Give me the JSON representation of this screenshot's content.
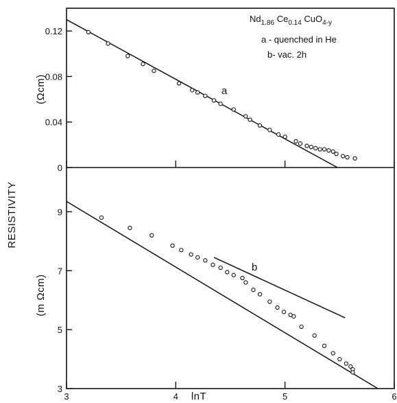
{
  "chart_data": [
    {
      "type": "scatter",
      "panel": "top",
      "title": "",
      "ylabel": "(Ωcm)",
      "xlabel": "",
      "xlim": [
        3,
        6
      ],
      "ylim": [
        0,
        0.14
      ],
      "yticks": [
        "0",
        "0.04",
        "0.08",
        "0.12"
      ],
      "annotations": [
        "a - quenched in He",
        "b- vac. 2h"
      ],
      "formula": {
        "base": "Nd",
        "sub1": "1.86",
        "mid": " Ce",
        "sub2": "0.14",
        "mid2": " CuO",
        "sub3": "4-y"
      },
      "series": [
        {
          "name": "a",
          "x": [
            3.2,
            3.38,
            3.56,
            3.7,
            3.8,
            4.03,
            4.15,
            4.2,
            4.27,
            4.35,
            4.41,
            4.53,
            4.64,
            4.68,
            4.77,
            4.86,
            4.94,
            5.0,
            5.1,
            5.14,
            5.2,
            5.24,
            5.28,
            5.32,
            5.36,
            5.4,
            5.44,
            5.47,
            5.53,
            5.57,
            5.64
          ],
          "y": [
            0.119,
            0.109,
            0.098,
            0.091,
            0.085,
            0.074,
            0.068,
            0.066,
            0.063,
            0.059,
            0.056,
            0.051,
            0.045,
            0.042,
            0.037,
            0.033,
            0.029,
            0.027,
            0.023,
            0.021,
            0.019,
            0.018,
            0.017,
            0.016,
            0.016,
            0.015,
            0.014,
            0.012,
            0.01,
            0.009,
            0.008
          ]
        }
      ],
      "fit_lines": [
        {
          "x": [
            3.0,
            5.48
          ],
          "y": [
            0.13,
            0.0
          ]
        }
      ]
    },
    {
      "type": "scatter",
      "panel": "bottom",
      "title": "",
      "ylabel": "(m Ωcm)",
      "xlabel": "lnT",
      "xlim": [
        3,
        6
      ],
      "ylim": [
        3,
        10.5
      ],
      "xticks": [
        "3",
        "4",
        "5",
        "6"
      ],
      "yticks": [
        "3",
        "5",
        "7",
        "9"
      ],
      "series": [
        {
          "name": "b",
          "x": [
            3.32,
            3.58,
            3.78,
            3.97,
            4.05,
            4.14,
            4.2,
            4.27,
            4.34,
            4.41,
            4.47,
            4.53,
            4.61,
            4.64,
            4.71,
            4.77,
            4.86,
            4.93,
            4.99,
            5.05,
            5.08,
            5.15,
            5.27,
            5.36,
            5.44,
            5.5,
            5.56,
            5.6,
            5.62,
            5.62
          ],
          "y": [
            8.8,
            8.45,
            8.2,
            7.85,
            7.7,
            7.55,
            7.45,
            7.35,
            7.2,
            7.1,
            6.95,
            6.85,
            6.75,
            6.6,
            6.35,
            6.2,
            5.95,
            5.75,
            5.6,
            5.5,
            5.45,
            5.1,
            4.8,
            4.45,
            4.2,
            4.0,
            3.85,
            3.75,
            3.65,
            3.55
          ]
        }
      ],
      "fit_lines": [
        {
          "x": [
            3.0,
            5.85
          ],
          "y": [
            9.35,
            3.0
          ]
        },
        {
          "x": [
            4.35,
            5.55
          ],
          "y": [
            7.45,
            5.4
          ]
        }
      ]
    }
  ],
  "figure": {
    "shared_ylabel": "RESISTIVITY"
  },
  "colors": {
    "ink": "#111111",
    "background": "#ffffff"
  }
}
